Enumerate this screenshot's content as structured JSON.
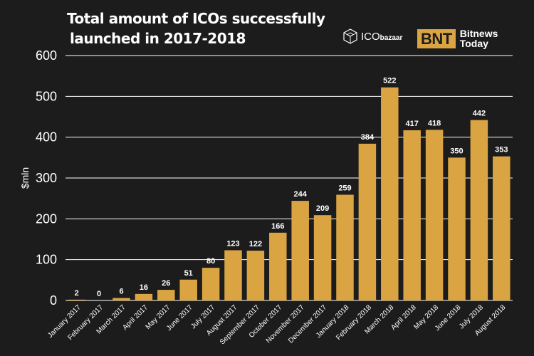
{
  "title_line1": "Total amount of ICOs successfully",
  "title_line2": "launched in 2017-2018",
  "logos": {
    "ico_main": "ICO",
    "ico_sub": "bazaar",
    "bnt_box": "BNT",
    "bnt_line1": "Bitnews",
    "bnt_line2": "Today"
  },
  "colors": {
    "background": "#1c1c1c",
    "bar": "#d9a441",
    "grid": "#ffffff",
    "text": "#ffffff"
  },
  "chart_data": {
    "type": "bar",
    "title": "Total amount of ICOs successfully launched in 2017-2018",
    "xlabel": "",
    "ylabel": "$mln",
    "ylim": [
      0,
      600
    ],
    "yticks": [
      0,
      100,
      200,
      300,
      400,
      500,
      600
    ],
    "grid": true,
    "categories": [
      "January 2017",
      "February 2017",
      "March 2017",
      "April 2017",
      "May 2017",
      "June 2017",
      "July 2017",
      "August 2017",
      "September 2017",
      "October 2017",
      "November 2017",
      "December 2017",
      "January 2018",
      "February 2018",
      "March 2018",
      "April 2018",
      "May 2018",
      "June 2018",
      "July 2018",
      "August 2018"
    ],
    "values": [
      2,
      0,
      6,
      16,
      26,
      51,
      80,
      123,
      122,
      166,
      244,
      209,
      259,
      384,
      522,
      417,
      418,
      350,
      442,
      353
    ]
  }
}
